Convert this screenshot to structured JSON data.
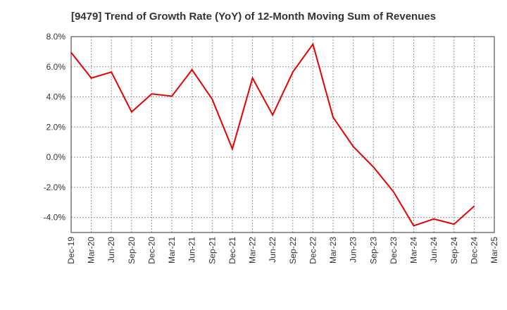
{
  "chart_data": {
    "type": "line",
    "title": "[9479]  Trend of Growth Rate (YoY) of 12-Month Moving Sum of Revenues",
    "xlabel": "",
    "ylabel": "",
    "ylim": [
      -5.0,
      8.0
    ],
    "y_ticks": [
      "8.0%",
      "6.0%",
      "4.0%",
      "2.0%",
      "0.0%",
      "-2.0%",
      "-4.0%"
    ],
    "y_tick_values": [
      8,
      6,
      4,
      2,
      0,
      -2,
      -4
    ],
    "categories": [
      "Dec-19",
      "Mar-20",
      "Jun-20",
      "Sep-20",
      "Dec-20",
      "Mar-21",
      "Jun-21",
      "Sep-21",
      "Dec-21",
      "Mar-22",
      "Jun-22",
      "Sep-22",
      "Dec-22",
      "Mar-23",
      "Jun-23",
      "Sep-23",
      "Dec-23",
      "Mar-24",
      "Jun-24",
      "Sep-24",
      "Dec-24",
      "Mar-25"
    ],
    "grid": true,
    "legend": "none",
    "line_color": "#e60000",
    "series": [
      {
        "values": [
          6.95,
          5.25,
          5.65,
          3.0,
          4.2,
          4.05,
          5.8,
          3.85,
          0.55,
          5.25,
          2.8,
          5.65,
          7.5,
          2.65,
          0.7,
          -0.65,
          -2.3,
          -4.55,
          -4.1,
          -4.45,
          -3.25,
          null
        ]
      }
    ]
  }
}
